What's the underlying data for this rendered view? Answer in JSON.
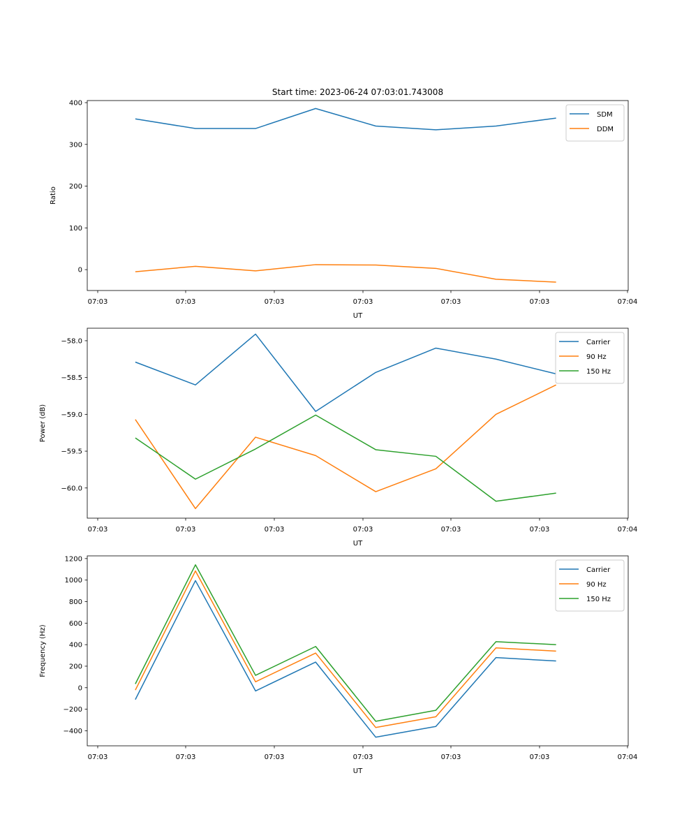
{
  "title": "Start time: 2023-06-24 07:03:01.743008",
  "chart_data": [
    {
      "type": "line",
      "title": "Start time: 2023-06-24 07:03:01.743008",
      "xlabel": "UT",
      "ylabel": "Ratio",
      "x_tick_labels": [
        "07:03",
        "07:03",
        "07:03",
        "07:03",
        "07:03",
        "07:03",
        "07:04"
      ],
      "x": [
        1,
        2,
        3,
        4,
        5,
        6,
        7,
        8
      ],
      "xlim": [
        0.2,
        9.2
      ],
      "ylim": [
        -50,
        405
      ],
      "y_ticks": [
        0,
        100,
        200,
        300,
        400
      ],
      "legend": "top-right",
      "series": [
        {
          "name": "SDM",
          "color": "#1f77b4",
          "values": [
            361,
            338,
            338,
            386,
            344,
            335,
            344,
            363
          ]
        },
        {
          "name": "DDM",
          "color": "#ff7f0e",
          "values": [
            -5,
            8,
            -3,
            12,
            11,
            3,
            -23,
            -30
          ]
        }
      ]
    },
    {
      "type": "line",
      "xlabel": "UT",
      "ylabel": "Power (dB)",
      "x_tick_labels": [
        "07:03",
        "07:03",
        "07:03",
        "07:03",
        "07:03",
        "07:03",
        "07:04"
      ],
      "x": [
        1,
        2,
        3,
        4,
        5,
        6,
        7,
        8
      ],
      "xlim": [
        0.2,
        9.2
      ],
      "ylim": [
        -60.41,
        -57.83
      ],
      "y_ticks": [
        -60.0,
        -59.5,
        -59.0,
        -58.5,
        -58.0
      ],
      "y_tick_labels": [
        "−60.0",
        "−59.5",
        "−59.0",
        "−58.5",
        "−58.0"
      ],
      "legend": "top-right",
      "series": [
        {
          "name": "Carrier",
          "color": "#1f77b4",
          "values": [
            -58.29,
            -58.6,
            -57.91,
            -58.96,
            -58.43,
            -58.1,
            -58.25,
            -58.45
          ]
        },
        {
          "name": "90 Hz",
          "color": "#ff7f0e",
          "values": [
            -59.07,
            -60.28,
            -59.31,
            -59.56,
            -60.05,
            -59.74,
            -59.0,
            -58.6
          ]
        },
        {
          "name": "150 Hz",
          "color": "#2ca02c",
          "values": [
            -59.32,
            -59.88,
            -59.47,
            -59.01,
            -59.48,
            -59.57,
            -60.18,
            -60.07
          ]
        }
      ]
    },
    {
      "type": "line",
      "xlabel": "UT",
      "ylabel": "Frequency (Hz)",
      "x_tick_labels": [
        "07:03",
        "07:03",
        "07:03",
        "07:03",
        "07:03",
        "07:03",
        "07:04"
      ],
      "x": [
        1,
        2,
        3,
        4,
        5,
        6,
        7,
        8
      ],
      "xlim": [
        0.2,
        9.2
      ],
      "ylim": [
        -540,
        1225
      ],
      "y_ticks": [
        -400,
        -200,
        0,
        200,
        400,
        600,
        800,
        1000,
        1200
      ],
      "y_tick_labels": [
        "−400",
        "−200",
        "0",
        "200",
        "400",
        "600",
        "800",
        "1000",
        "1200"
      ],
      "legend": "top-right",
      "series": [
        {
          "name": "Carrier",
          "color": "#1f77b4",
          "values": [
            -110,
            995,
            -30,
            238,
            -460,
            -360,
            280,
            248
          ]
        },
        {
          "name": "90 Hz",
          "color": "#ff7f0e",
          "values": [
            -22,
            1085,
            55,
            322,
            -370,
            -270,
            370,
            340
          ]
        },
        {
          "name": "150 Hz",
          "color": "#2ca02c",
          "values": [
            35,
            1142,
            115,
            383,
            -312,
            -210,
            428,
            400
          ]
        }
      ]
    }
  ]
}
